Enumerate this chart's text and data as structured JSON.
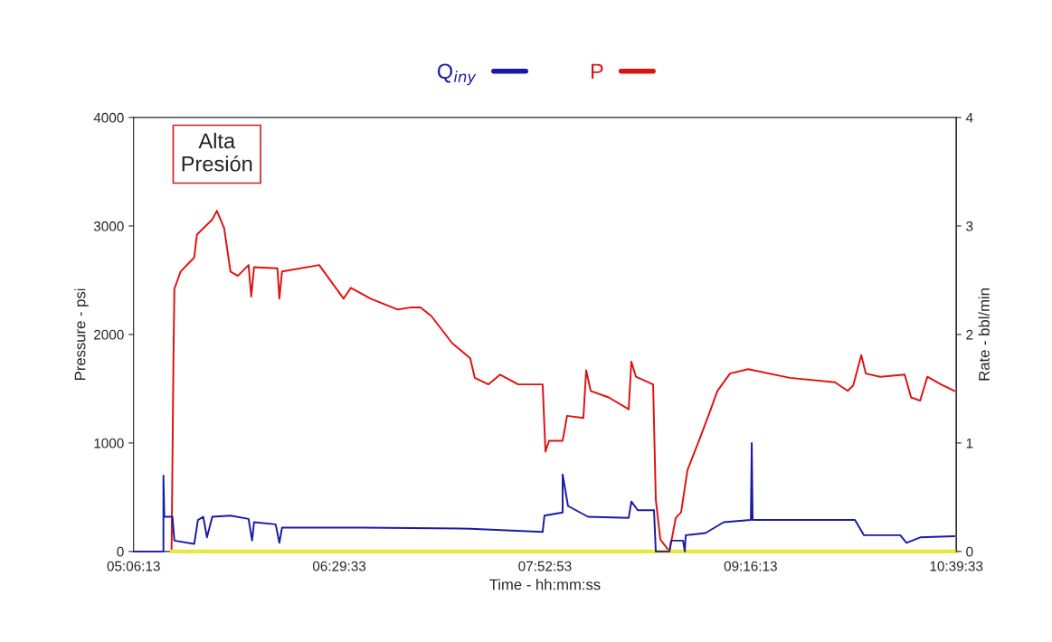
{
  "chart_data": {
    "type": "line",
    "xlabel": "Time - hh:mm:ss",
    "ylabel": "Pressure - psi",
    "y2label": "Rate - bbl/min",
    "xlim": [
      5.10361,
      10.65917
    ],
    "xticks": [
      {
        "value": 5.10361,
        "label": "05:06:13"
      },
      {
        "value": 6.4925,
        "label": "06:29:33"
      },
      {
        "value": 7.88139,
        "label": "07:52:53"
      },
      {
        "value": 9.27028,
        "label": "09:16:13"
      },
      {
        "value": 10.65917,
        "label": "10:39:33"
      }
    ],
    "ylim": [
      0,
      4000
    ],
    "yticks": [
      0,
      1000,
      2000,
      3000,
      4000
    ],
    "y2lim": [
      0,
      4
    ],
    "y2ticks": [
      0,
      1,
      2,
      3,
      4
    ],
    "grid": false,
    "legend": "top",
    "marker": "none",
    "line_style": "solid",
    "series": [
      {
        "name": "Q$_{iny}$",
        "color": "#1a1aa8",
        "axis": "y2",
        "x": [
          5.104,
          5.305,
          5.305,
          5.311,
          5.366,
          5.379,
          5.513,
          5.538,
          5.574,
          5.599,
          5.635,
          5.758,
          5.88,
          5.904,
          5.917,
          6.063,
          6.088,
          6.106,
          6.644,
          7.377,
          7.866,
          7.878,
          8.001,
          8.001,
          8.037,
          8.172,
          8.447,
          8.465,
          8.508,
          8.618,
          8.63,
          8.722,
          8.734,
          8.814,
          8.826,
          8.832,
          8.966,
          9.027,
          9.089,
          9.272,
          9.278,
          9.284,
          9.975,
          10.036,
          10.281,
          10.323,
          10.415,
          10.647
        ],
        "values": [
          0,
          0,
          0.7,
          0.32,
          0.32,
          0.1,
          0.07,
          0.29,
          0.32,
          0.13,
          0.32,
          0.33,
          0.3,
          0.1,
          0.27,
          0.25,
          0.08,
          0.22,
          0.22,
          0.21,
          0.18,
          0.33,
          0.36,
          0.71,
          0.42,
          0.32,
          0.31,
          0.46,
          0.38,
          0.38,
          0,
          0,
          0.1,
          0.1,
          0,
          0.15,
          0.17,
          0.22,
          0.27,
          0.29,
          1.0,
          0.29,
          0.29,
          0.15,
          0.15,
          0.08,
          0.13,
          0.14
        ]
      },
      {
        "name": "P",
        "color": "#e01010",
        "axis": "y",
        "x": [
          5.36,
          5.373,
          5.379,
          5.421,
          5.513,
          5.531,
          5.635,
          5.666,
          5.715,
          5.758,
          5.807,
          5.88,
          5.898,
          5.917,
          6.075,
          6.088,
          6.106,
          6.357,
          6.522,
          6.571,
          6.705,
          6.888,
          6.98,
          7.041,
          7.114,
          7.255,
          7.377,
          7.408,
          7.5,
          7.579,
          7.701,
          7.866,
          7.885,
          7.909,
          8.001,
          8.031,
          8.141,
          8.16,
          8.19,
          8.312,
          8.447,
          8.465,
          8.496,
          8.612,
          8.63,
          8.661,
          8.722,
          8.765,
          8.801,
          8.844,
          8.924,
          8.985,
          9.046,
          9.131,
          9.254,
          9.535,
          9.84,
          9.926,
          9.963,
          10.018,
          10.048,
          10.146,
          10.311,
          10.354,
          10.415,
          10.464,
          10.556,
          10.647
        ],
        "values": [
          0,
          1810,
          2420,
          2580,
          2710,
          2920,
          3060,
          3140,
          2980,
          2580,
          2540,
          2640,
          2350,
          2620,
          2610,
          2330,
          2580,
          2640,
          2330,
          2430,
          2330,
          2230,
          2250,
          2250,
          2170,
          1920,
          1780,
          1600,
          1540,
          1630,
          1540,
          1540,
          920,
          1020,
          1020,
          1250,
          1230,
          1670,
          1480,
          1420,
          1310,
          1750,
          1610,
          1540,
          480,
          110,
          0,
          310,
          360,
          750,
          1030,
          1250,
          1480,
          1640,
          1680,
          1600,
          1560,
          1480,
          1530,
          1810,
          1640,
          1610,
          1630,
          1420,
          1390,
          1610,
          1540,
          1480
        ]
      },
      {
        "color": "#e8e840",
        "axis": "y",
        "x": [
          5.36,
          10.659
        ],
        "values": [
          0,
          0
        ]
      }
    ],
    "annotations": [
      {
        "text": "Alta\nPresión",
        "x": 5.666,
        "y": 3140
      }
    ]
  }
}
